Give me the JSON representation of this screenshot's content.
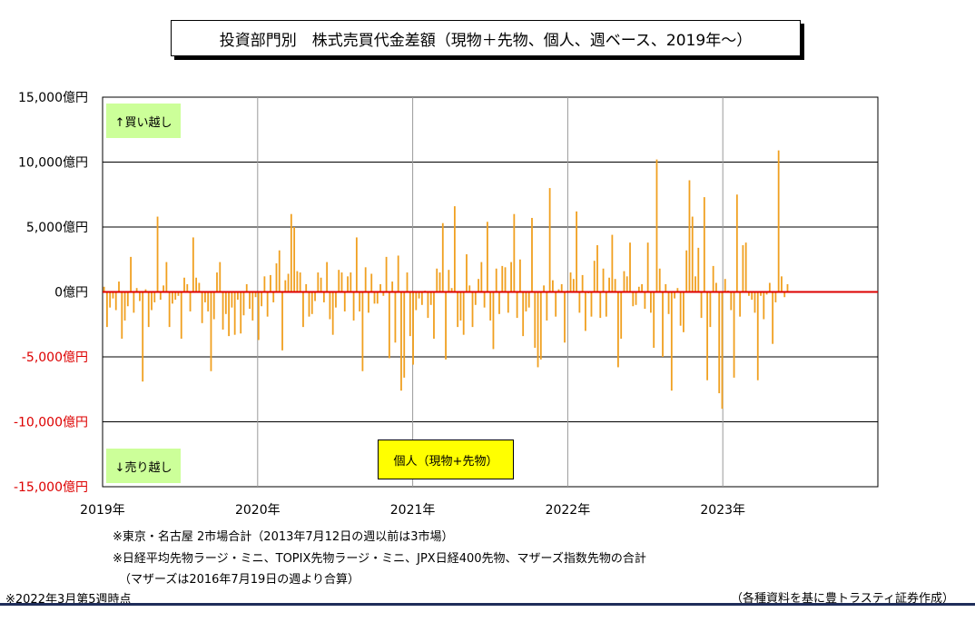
{
  "title": "投資部門別　株式売買代金差額（現物＋先物、個人、週ベース、2019年〜）",
  "buy_label": "↑買い越し",
  "sell_label": "↓売り越し",
  "series_label": "個人（現物+先物）",
  "notes": {
    "n1": "※東京・名古屋  2市場合計（2013年7月12日の週以前は3市場）",
    "n2": "※日経平均先物ラージ・ミニ、TOPIX先物ラージ・ミニ、JPX日経400先物、マザーズ指数先物の合計",
    "n3": "（マザーズは2016年7月19日の週より合算）",
    "asof": "※2022年3月第5週時点",
    "source": "（各種資料を基に豊トラスティ証券作成）"
  },
  "colors": {
    "bar": "#f0a020",
    "zero_line": "#dd0000",
    "negative_tick": "#dd0000",
    "bottom_rule": "#1f2d5a"
  },
  "chart_data": {
    "type": "bar",
    "xlabel": "",
    "ylabel": "",
    "ylim": [
      -15000,
      15000
    ],
    "x_ticks": [
      "2019年",
      "2020年",
      "2021年",
      "2022年",
      "2023年"
    ],
    "x_range_years": [
      2019,
      2024
    ],
    "y_ticks": [
      {
        "value": 15000,
        "label": "15,000億円"
      },
      {
        "value": 10000,
        "label": "10,000億円"
      },
      {
        "value": 5000,
        "label": "5,000億円"
      },
      {
        "value": 0,
        "label": "0億円"
      },
      {
        "value": -5000,
        "label": "-5,000億円"
      },
      {
        "value": -10000,
        "label": "-10,000億円"
      },
      {
        "value": -15000,
        "label": "-15,000億円"
      }
    ],
    "grid": true,
    "series": [
      {
        "values": [
          400,
          -2700,
          -1200,
          -500,
          -1400,
          800,
          -3600,
          -2200,
          -1100,
          2700,
          -1600,
          300,
          -700,
          -6900,
          200,
          -2700,
          -1400,
          -800,
          5800,
          -600,
          500,
          2300,
          -2700,
          -900,
          -600,
          -300,
          -3600,
          1100,
          600,
          -1500,
          4200,
          1100,
          700,
          -2400,
          -800,
          -1500,
          -6100,
          -2100,
          1500,
          2300,
          -2900,
          -1700,
          -3400,
          -1200,
          -3300,
          -600,
          -3200,
          -1800,
          600,
          -1300,
          -2200,
          -400,
          -3700,
          -1100,
          1200,
          -1900,
          1300,
          -800,
          2200,
          3200,
          -4500,
          900,
          1400,
          6000,
          5000,
          1600,
          1500,
          -2700,
          600,
          -1900,
          -1700,
          -700,
          1500,
          1100,
          -800,
          2300,
          -2100,
          -3300,
          -1200,
          1700,
          1500,
          -1500,
          1200,
          1500,
          -2200,
          4200,
          -1500,
          -6100,
          1900,
          -1600,
          1400,
          -900,
          -900,
          600,
          -300,
          2700,
          -5100,
          800,
          -3900,
          2800,
          -7600,
          -6600,
          1500,
          -3400,
          -5600,
          -1400,
          -500,
          -1000,
          100,
          -2000,
          -1000,
          -3600,
          1800,
          1500,
          5300,
          -5200,
          1700,
          300,
          6600,
          -2700,
          -2200,
          -3300,
          2900,
          500,
          -2700,
          -1000,
          1000,
          2300,
          -1200,
          5400,
          -2200,
          -4400,
          1800,
          -1700,
          2000,
          1900,
          -1600,
          2300,
          6000,
          -2000,
          2500,
          -3400,
          -1500,
          -1200,
          5700,
          -4300,
          -5800,
          -5200,
          500,
          -2200,
          8000,
          900,
          -1900,
          200,
          600,
          -3900,
          100,
          1500,
          1000,
          6200,
          -1600,
          1300,
          -3000,
          -100,
          -1900,
          2400,
          3600,
          -2000,
          1800,
          -1900,
          1100,
          4400,
          1000,
          -5800,
          -3600,
          1600,
          1200,
          3800,
          -1100,
          -1000,
          400,
          600,
          -1300,
          3800,
          -1600,
          -4300,
          10200,
          1800,
          -5000,
          600,
          -1700,
          -7600,
          -500,
          300,
          -2600,
          -3100,
          3200,
          8600,
          5800,
          1200,
          3400,
          -2000,
          7300,
          -6800,
          -2700,
          2000,
          700,
          -7800,
          -9000,
          1000,
          100,
          -1400,
          -6600,
          7500,
          -1900,
          3600,
          3800,
          -300,
          -600,
          -1600,
          -6800,
          -300,
          -2100,
          -200,
          700,
          -4000,
          -800,
          10900,
          1200,
          -400,
          600
        ]
      }
    ]
  }
}
